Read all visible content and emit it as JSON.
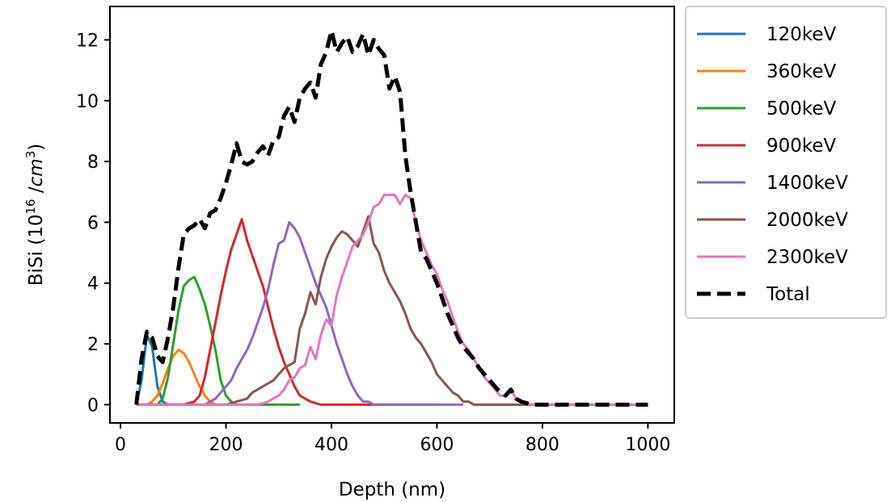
{
  "chart_data": {
    "type": "line",
    "title": "",
    "xlabel": "Depth (nm)",
    "ylabel": {
      "prefix": "BiSi (10",
      "exp": "16",
      "mid": " /",
      "unit": "cm",
      "unit_exp": "3",
      "suffix": ")"
    },
    "xlim": [
      -20,
      1050
    ],
    "ylim": [
      -0.6,
      13.1
    ],
    "xticks": [
      0,
      200,
      400,
      600,
      800,
      1000
    ],
    "yticks": [
      0,
      2,
      4,
      6,
      8,
      10,
      12
    ],
    "legend_position": "outside-right-top",
    "series": [
      {
        "name": "120keV",
        "color": "#1f77b4",
        "style": "solid",
        "x": [
          30,
          40,
          50,
          60,
          70,
          80,
          90,
          100,
          110,
          120,
          130,
          140
        ],
        "y": [
          0.0,
          0.8,
          2.3,
          1.9,
          0.6,
          0.1,
          0.0,
          0.0,
          0.0,
          0.0,
          0.0,
          0.0
        ]
      },
      {
        "name": "360keV",
        "color": "#ff7f0e",
        "style": "solid",
        "x": [
          30,
          50,
          60,
          70,
          80,
          90,
          100,
          110,
          120,
          130,
          140,
          150,
          160,
          170,
          180,
          190,
          200,
          220
        ],
        "y": [
          0.0,
          0.0,
          0.1,
          0.3,
          0.7,
          1.2,
          1.6,
          1.8,
          1.7,
          1.4,
          1.0,
          0.6,
          0.3,
          0.1,
          0.0,
          0.0,
          0.0,
          0.0
        ]
      },
      {
        "name": "500keV",
        "color": "#2ca02c",
        "style": "solid",
        "x": [
          30,
          70,
          80,
          90,
          100,
          110,
          120,
          130,
          140,
          150,
          160,
          170,
          180,
          190,
          200,
          210,
          220,
          240,
          300,
          340
        ],
        "y": [
          0.0,
          0.0,
          0.2,
          0.9,
          2.0,
          3.1,
          3.9,
          4.1,
          4.2,
          3.8,
          3.3,
          2.6,
          1.8,
          0.8,
          0.3,
          0.1,
          0.0,
          0.0,
          0.0,
          0.0
        ]
      },
      {
        "name": "900keV",
        "color": "#d62728",
        "style": "solid",
        "x": [
          30,
          120,
          140,
          150,
          160,
          170,
          180,
          190,
          200,
          210,
          220,
          230,
          240,
          250,
          260,
          270,
          280,
          290,
          300,
          310,
          320,
          330,
          340,
          350,
          360,
          380,
          400,
          450,
          600
        ],
        "y": [
          0.0,
          0.0,
          0.1,
          0.3,
          0.9,
          1.8,
          2.7,
          3.6,
          4.4,
          5.1,
          5.6,
          6.1,
          5.4,
          4.9,
          4.4,
          3.9,
          3.2,
          2.5,
          1.9,
          1.4,
          1.0,
          0.6,
          0.3,
          0.2,
          0.1,
          0.0,
          0.0,
          0.0,
          0.0
        ]
      },
      {
        "name": "1400keV",
        "color": "#9467bd",
        "style": "solid",
        "x": [
          30,
          140,
          160,
          180,
          190,
          200,
          210,
          220,
          230,
          240,
          250,
          260,
          270,
          280,
          290,
          300,
          310,
          320,
          330,
          340,
          350,
          360,
          370,
          380,
          390,
          400,
          410,
          420,
          430,
          440,
          450,
          460,
          470,
          480,
          500,
          520,
          560,
          650
        ],
        "y": [
          0.0,
          0.0,
          0.0,
          0.2,
          0.4,
          0.6,
          0.8,
          1.2,
          1.5,
          1.8,
          2.2,
          2.7,
          3.2,
          3.8,
          4.6,
          5.3,
          5.4,
          6.0,
          5.8,
          5.5,
          5.0,
          4.5,
          4.0,
          3.6,
          3.2,
          2.6,
          2.0,
          1.5,
          1.0,
          0.6,
          0.3,
          0.1,
          0.1,
          0.0,
          0.0,
          0.0,
          0.0,
          0.0
        ]
      },
      {
        "name": "2000keV",
        "color": "#8c564b",
        "style": "solid",
        "x": [
          30,
          200,
          220,
          240,
          250,
          260,
          270,
          280,
          290,
          300,
          310,
          320,
          330,
          340,
          350,
          360,
          370,
          380,
          390,
          400,
          410,
          420,
          430,
          440,
          450,
          460,
          470,
          480,
          490,
          500,
          510,
          520,
          530,
          540,
          550,
          560,
          570,
          580,
          590,
          600,
          610,
          620,
          630,
          640,
          650,
          660,
          670,
          680,
          700,
          800,
          1000
        ],
        "y": [
          0.0,
          0.0,
          0.1,
          0.2,
          0.4,
          0.5,
          0.6,
          0.7,
          0.8,
          1.0,
          1.2,
          1.3,
          1.4,
          2.5,
          3.0,
          3.7,
          3.3,
          4.2,
          4.8,
          5.2,
          5.5,
          5.7,
          5.6,
          5.4,
          5.2,
          5.7,
          6.2,
          5.3,
          5.0,
          4.4,
          4.0,
          3.7,
          3.4,
          3.0,
          2.5,
          2.2,
          2.0,
          1.7,
          1.4,
          1.0,
          0.8,
          0.6,
          0.4,
          0.3,
          0.1,
          0.1,
          0.0,
          0.0,
          0.0,
          0.0,
          0.0
        ]
      },
      {
        "name": "2300keV",
        "color": "#e377c2",
        "style": "solid",
        "x": [
          30,
          260,
          280,
          300,
          310,
          320,
          330,
          340,
          350,
          360,
          370,
          380,
          390,
          400,
          410,
          420,
          430,
          440,
          450,
          460,
          470,
          480,
          490,
          500,
          510,
          520,
          530,
          540,
          550,
          560,
          570,
          580,
          590,
          600,
          610,
          620,
          630,
          640,
          650,
          660,
          670,
          680,
          690,
          700,
          710,
          720,
          730,
          740,
          750,
          760,
          780,
          800,
          1000
        ],
        "y": [
          0.0,
          0.0,
          0.1,
          0.3,
          0.5,
          0.8,
          0.9,
          1.2,
          1.3,
          1.9,
          1.5,
          2.3,
          2.8,
          2.6,
          3.6,
          4.2,
          4.7,
          5.2,
          5.4,
          5.6,
          6.0,
          6.5,
          6.6,
          6.9,
          6.9,
          6.9,
          6.6,
          6.9,
          6.8,
          6.0,
          5.4,
          5.0,
          4.6,
          4.3,
          3.8,
          3.4,
          2.9,
          2.4,
          2.0,
          1.8,
          1.5,
          1.2,
          0.9,
          0.7,
          0.5,
          0.3,
          0.3,
          0.5,
          0.2,
          0.1,
          0.0,
          0.0,
          0.0
        ]
      },
      {
        "name": "Total",
        "color": "#000000",
        "style": "dashed",
        "x": [
          30,
          40,
          50,
          60,
          70,
          80,
          90,
          100,
          110,
          120,
          130,
          140,
          150,
          160,
          170,
          180,
          190,
          200,
          210,
          220,
          230,
          240,
          250,
          260,
          270,
          280,
          290,
          300,
          310,
          320,
          330,
          340,
          350,
          360,
          370,
          380,
          390,
          400,
          410,
          420,
          430,
          440,
          450,
          460,
          470,
          480,
          490,
          500,
          510,
          520,
          530,
          540,
          550,
          560,
          570,
          580,
          590,
          600,
          610,
          620,
          630,
          640,
          650,
          660,
          670,
          680,
          690,
          700,
          710,
          720,
          730,
          740,
          750,
          760,
          770,
          780,
          800,
          850,
          900,
          1000
        ],
        "y": [
          0.0,
          1.5,
          2.4,
          2.2,
          1.6,
          1.4,
          2.2,
          3.2,
          4.5,
          5.6,
          5.8,
          5.9,
          6.1,
          5.8,
          6.3,
          6.4,
          6.8,
          7.3,
          7.9,
          8.6,
          8.0,
          7.9,
          8.0,
          8.3,
          8.5,
          8.2,
          8.7,
          8.8,
          9.5,
          9.8,
          9.3,
          10.1,
          10.4,
          10.6,
          10.1,
          11.2,
          11.6,
          12.3,
          11.6,
          11.9,
          12.1,
          11.6,
          11.8,
          12.2,
          11.5,
          12.0,
          11.7,
          11.5,
          10.4,
          10.8,
          10.3,
          8.2,
          7.0,
          6.0,
          5.0,
          4.8,
          4.4,
          4.0,
          3.5,
          3.0,
          2.6,
          2.2,
          1.9,
          1.7,
          1.5,
          1.2,
          1.0,
          0.8,
          0.6,
          0.4,
          0.3,
          0.5,
          0.2,
          0.1,
          0.05,
          0.0,
          0.0,
          0.0,
          0.0,
          0.0
        ]
      }
    ]
  }
}
